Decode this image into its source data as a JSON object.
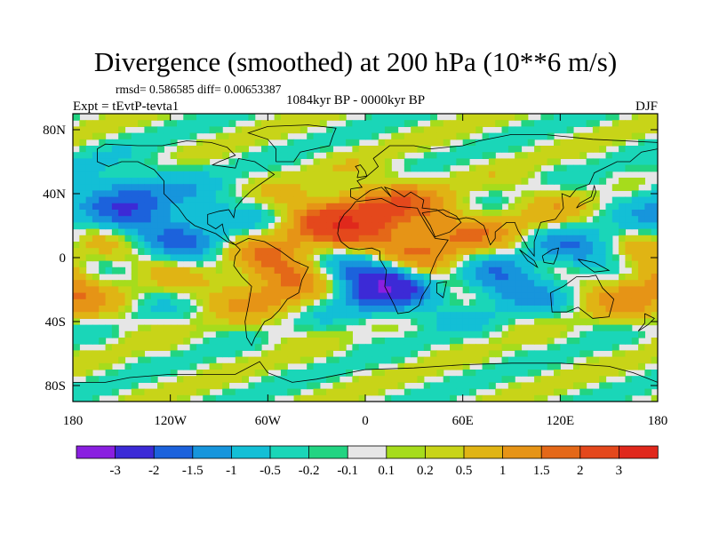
{
  "chart_data": {
    "type": "heatmap",
    "title": "Divergence (smoothed) at 200 hPa (10**6 m/s)",
    "stats_label": "rmsd= 0.586585 diff= 0.00653387",
    "experiment_label": "Expt = tEvtP-tevta1",
    "period_label": "1084kyr BP - 0000kyr BP",
    "season_label": "DJF",
    "x_range": [
      -180,
      180
    ],
    "y_range": [
      -90,
      90
    ],
    "x_ticks": [
      {
        "value": -180,
        "label": "180"
      },
      {
        "value": -120,
        "label": "120W"
      },
      {
        "value": -60,
        "label": "60W"
      },
      {
        "value": 0,
        "label": "0"
      },
      {
        "value": 60,
        "label": "60E"
      },
      {
        "value": 120,
        "label": "120E"
      },
      {
        "value": 180,
        "label": "180"
      }
    ],
    "y_ticks": [
      {
        "value": 80,
        "label": "80N"
      },
      {
        "value": 40,
        "label": "40N"
      },
      {
        "value": 0,
        "label": "0"
      },
      {
        "value": -40,
        "label": "40S"
      },
      {
        "value": -80,
        "label": "80S"
      }
    ],
    "colorbar": {
      "colors": [
        "#8a1fe0",
        "#3c2ad6",
        "#1c62dc",
        "#1795dc",
        "#13bfd6",
        "#1ad6b8",
        "#22d482",
        "#e6e6e6",
        "#a6dc1c",
        "#c8d418",
        "#e0b414",
        "#e69416",
        "#e46818",
        "#e4481c",
        "#e0281c"
      ],
      "tick_labels": [
        "-3",
        "-2",
        "-1.5",
        "-1",
        "-0.5",
        "-0.2",
        "-0.1",
        "0.1",
        "0.2",
        "0.5",
        "1",
        "1.5",
        "2",
        "3"
      ]
    },
    "field_features": [
      {
        "lon": 10,
        "lat": -14,
        "value": -3.2,
        "region": "equatorial Atlantic / Congo coast"
      },
      {
        "lon": 80,
        "lat": -12,
        "value": -1.8,
        "region": "central Indian Ocean"
      },
      {
        "lon": 130,
        "lat": 8,
        "value": -1.7,
        "region": "western Pacific"
      },
      {
        "lon": -150,
        "lat": 38,
        "value": -1.4,
        "region": "north Pacific"
      },
      {
        "lon": -110,
        "lat": 20,
        "value": -1.2,
        "region": "eastern Pacific"
      },
      {
        "lon": 45,
        "lat": -2,
        "value": 2.4,
        "region": "equatorial east Africa"
      },
      {
        "lon": -20,
        "lat": 18,
        "value": 1.8,
        "region": "north Atlantic subtropics"
      },
      {
        "lon": 15,
        "lat": 28,
        "value": 1.6,
        "region": "north Africa / Sahara"
      },
      {
        "lon": -55,
        "lat": -15,
        "value": 1.7,
        "region": "South America"
      },
      {
        "lon": 110,
        "lat": 18,
        "value": 1.3,
        "region": "south-east Asia"
      },
      {
        "lon": 170,
        "lat": -15,
        "value": 1.5,
        "region": "south-west Pacific"
      }
    ]
  }
}
